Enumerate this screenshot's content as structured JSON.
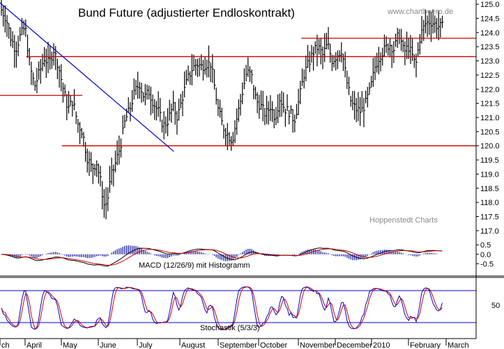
{
  "chart_data": {
    "type": "bar",
    "title": "Bund Future (adjustierter Endloskontrakt)",
    "watermark_top": "www.chartbuero.de",
    "watermark_bottom": "Hoppenstedt Charts",
    "price_axis": {
      "ticks": [
        "125.0",
        "124.5",
        "124.0",
        "123.5",
        "123.0",
        "122.5",
        "122.0",
        "121.5",
        "121.0",
        "120.5",
        "120.0",
        "119.5",
        "119.0",
        "118.5",
        "118.0",
        "117.5",
        "117.0"
      ],
      "ylim": [
        116.8,
        125.15
      ]
    },
    "macd_axis": {
      "ticks": [
        "0.5",
        "0.0",
        "-0.5"
      ],
      "ylim": [
        -1.15,
        0.95
      ]
    },
    "stoch_axis": {
      "ticks": [
        "50"
      ],
      "ylim": [
        0,
        100
      ]
    },
    "months": [
      "ch",
      "April",
      "May",
      "June",
      "July",
      "August",
      "September",
      "October",
      "November",
      "December",
      "2010",
      "February",
      "March"
    ],
    "horizontal_levels": [
      {
        "value": 123.8,
        "x_start": 0.633,
        "x_end": 1.0
      },
      {
        "value": 123.15,
        "x_start": 0.055,
        "x_end": 1.0
      },
      {
        "value": 121.78,
        "x_start": 0.0,
        "x_end": 0.173
      },
      {
        "value": 120.0,
        "x_start": 0.13,
        "x_end": 1.0
      }
    ],
    "trendline": {
      "from": [
        0.0,
        125.05
      ],
      "to": [
        0.365,
        119.8
      ]
    },
    "close_anchors": [
      [
        0.0,
        124.8
      ],
      [
        0.01,
        124.5
      ],
      [
        0.02,
        123.8
      ],
      [
        0.03,
        123.4
      ],
      [
        0.04,
        123.9
      ],
      [
        0.05,
        124.2
      ],
      [
        0.06,
        122.8
      ],
      [
        0.07,
        122.1
      ],
      [
        0.08,
        122.6
      ],
      [
        0.09,
        123.1
      ],
      [
        0.1,
        122.9
      ],
      [
        0.11,
        123.4
      ],
      [
        0.12,
        122.8
      ],
      [
        0.13,
        122.0
      ],
      [
        0.14,
        121.3
      ],
      [
        0.15,
        121.6
      ],
      [
        0.16,
        120.8
      ],
      [
        0.17,
        120.5
      ],
      [
        0.18,
        119.6
      ],
      [
        0.19,
        119.2
      ],
      [
        0.2,
        119.4
      ],
      [
        0.21,
        118.6
      ],
      [
        0.215,
        117.9
      ],
      [
        0.222,
        118.0
      ],
      [
        0.23,
        118.9
      ],
      [
        0.24,
        119.4
      ],
      [
        0.25,
        120.0
      ],
      [
        0.26,
        120.9
      ],
      [
        0.27,
        121.3
      ],
      [
        0.28,
        121.9
      ],
      [
        0.29,
        122.2
      ],
      [
        0.3,
        121.7
      ],
      [
        0.31,
        121.9
      ],
      [
        0.32,
        121.5
      ],
      [
        0.33,
        121.2
      ],
      [
        0.34,
        120.7
      ],
      [
        0.35,
        120.9
      ],
      [
        0.36,
        121.4
      ],
      [
        0.37,
        121.0
      ],
      [
        0.38,
        121.7
      ],
      [
        0.39,
        122.3
      ],
      [
        0.4,
        122.7
      ],
      [
        0.41,
        122.9
      ],
      [
        0.42,
        122.8
      ],
      [
        0.43,
        122.9
      ],
      [
        0.44,
        122.9
      ],
      [
        0.455,
        121.3
      ],
      [
        0.465,
        120.7
      ],
      [
        0.475,
        120.4
      ],
      [
        0.485,
        120.2
      ],
      [
        0.495,
        121.0
      ],
      [
        0.505,
        121.8
      ],
      [
        0.515,
        122.6
      ],
      [
        0.525,
        122.5
      ],
      [
        0.535,
        121.6
      ],
      [
        0.545,
        121.4
      ],
      [
        0.555,
        121.1
      ],
      [
        0.565,
        121.4
      ],
      [
        0.575,
        121.0
      ],
      [
        0.585,
        121.7
      ],
      [
        0.595,
        121.3
      ],
      [
        0.605,
        121.2
      ],
      [
        0.615,
        120.9
      ],
      [
        0.625,
        121.6
      ],
      [
        0.635,
        122.5
      ],
      [
        0.645,
        122.9
      ],
      [
        0.655,
        123.3
      ],
      [
        0.665,
        123.5
      ],
      [
        0.675,
        123.2
      ],
      [
        0.685,
        123.6
      ],
      [
        0.695,
        123.0
      ],
      [
        0.705,
        123.2
      ],
      [
        0.715,
        123.4
      ],
      [
        0.725,
        122.3
      ],
      [
        0.735,
        121.5
      ],
      [
        0.745,
        121.3
      ],
      [
        0.755,
        121.2
      ],
      [
        0.765,
        121.5
      ],
      [
        0.775,
        122.0
      ],
      [
        0.785,
        122.8
      ],
      [
        0.795,
        123.2
      ],
      [
        0.805,
        123.4
      ],
      [
        0.815,
        123.6
      ],
      [
        0.825,
        123.4
      ],
      [
        0.835,
        124.0
      ],
      [
        0.845,
        123.3
      ],
      [
        0.855,
        123.5
      ],
      [
        0.865,
        123.1
      ],
      [
        0.87,
        122.8
      ],
      [
        0.88,
        123.9
      ],
      [
        0.89,
        124.3
      ],
      [
        0.9,
        124.4
      ],
      [
        0.91,
        124.3
      ],
      [
        0.92,
        124.2
      ]
    ],
    "macd_label": "MACD (12/26/9) mit Histogramm",
    "stoch_label": "Stochastik (5/3/3)",
    "colors": {
      "bars": "#000000",
      "level": "#cc0000",
      "trend": "#0000cc",
      "macd": "#000000",
      "signal": "#cc0000",
      "hist": "#2a2aa8",
      "stoch_k": "#0000cc",
      "stoch_d": "#cc0000",
      "grid": "#000000"
    }
  }
}
